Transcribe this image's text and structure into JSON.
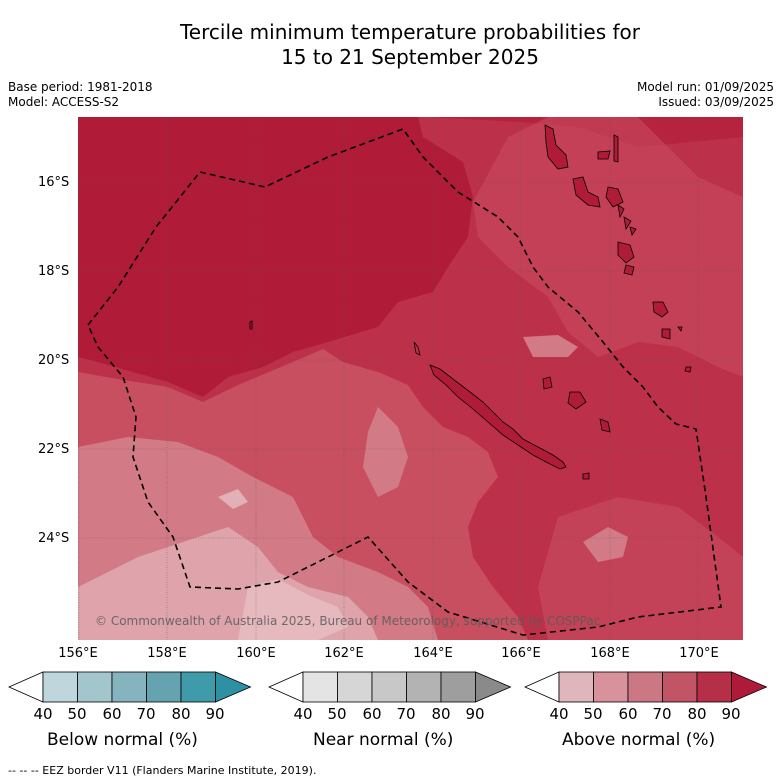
{
  "title_line1": "Tercile minimum temperature probabilities for",
  "title_line2": "15 to 21 September 2025",
  "base_period": "Base period: 1981-2018",
  "model": "Model: ACCESS-S2",
  "model_run": "Model run: 01/09/2025",
  "issued": "Issued: 03/09/2025",
  "lat_labels": [
    "16°S",
    "18°S",
    "20°S",
    "22°S",
    "24°S"
  ],
  "lon_labels": [
    "156°E",
    "158°E",
    "160°E",
    "162°E",
    "164°E",
    "166°E",
    "168°E",
    "170°E"
  ],
  "copyright": "© Commonwealth of Australia 2025, Bureau of Meteorology, supported by COSPPac",
  "legends": [
    {
      "caption": "Below normal (%)",
      "ticks": [
        "40",
        "50",
        "60",
        "70",
        "80",
        "90"
      ],
      "colors": [
        "#ffffff",
        "#bfd6dc",
        "#a3c6cd",
        "#85b4be",
        "#65a3b1",
        "#3f9aa9",
        "#2d91a3"
      ]
    },
    {
      "caption": "Near normal (%)",
      "ticks": [
        "40",
        "50",
        "60",
        "70",
        "80",
        "90"
      ],
      "colors": [
        "#ffffff",
        "#e4e4e4",
        "#d6d6d6",
        "#c8c8c8",
        "#b3b3b3",
        "#9e9e9e",
        "#8a8a8a"
      ]
    },
    {
      "caption": "Above normal (%)",
      "ticks": [
        "40",
        "50",
        "60",
        "70",
        "80",
        "90"
      ],
      "colors": [
        "#ffffff",
        "#e0b6bd",
        "#d8929c",
        "#cc7784",
        "#c25565",
        "#b72e48",
        "#ae1a38"
      ]
    }
  ],
  "footnote": "--  --  -- EEZ border V11 (Flanders Marine Institute, 2019).",
  "colors": {
    "above_80_90": "#b01b37",
    "above_70_80": "#bd3049",
    "above_60_70": "#c84f60",
    "above_50_60": "#d27a86",
    "above_40_50": "#dea3ab",
    "land": "#b01b37"
  }
}
